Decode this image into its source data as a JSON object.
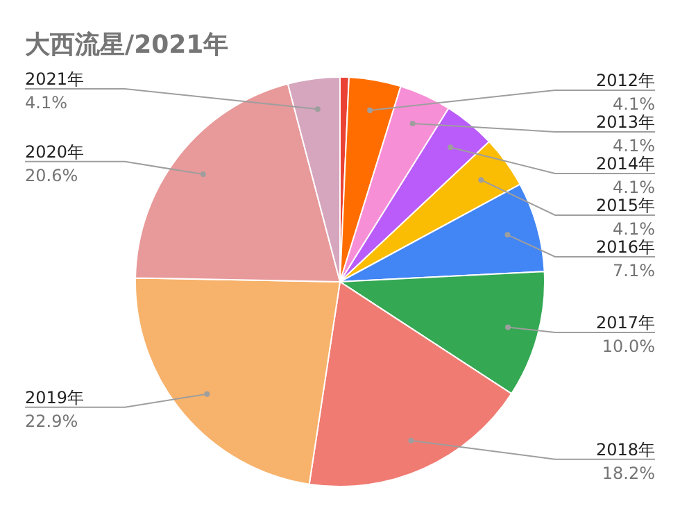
{
  "chart_data": {
    "type": "pie",
    "title": "大西流星/2021年",
    "categories": [
      null,
      "2012年",
      "2013年",
      "2014年",
      "2015年",
      "2016年",
      "2017年",
      "2018年",
      "2019年",
      "2020年",
      "2021年"
    ],
    "values": [
      0.7,
      4.1,
      4.1,
      4.1,
      4.1,
      7.1,
      10.0,
      18.2,
      22.9,
      20.6,
      4.1
    ],
    "value_labels": [
      null,
      "4.1%",
      "4.1%",
      "4.1%",
      "4.1%",
      "7.1%",
      "10.0%",
      "18.2%",
      "22.9%",
      "20.6%",
      "4.1%"
    ],
    "colors": [
      "#ea4335",
      "#ff6d01",
      "#f78fd6",
      "#b95cf9",
      "#fbbc04",
      "#4285f4",
      "#34a853",
      "#f07b72",
      "#f7b26b",
      "#e8999a",
      "#d5a6bd"
    ],
    "legend": false
  }
}
